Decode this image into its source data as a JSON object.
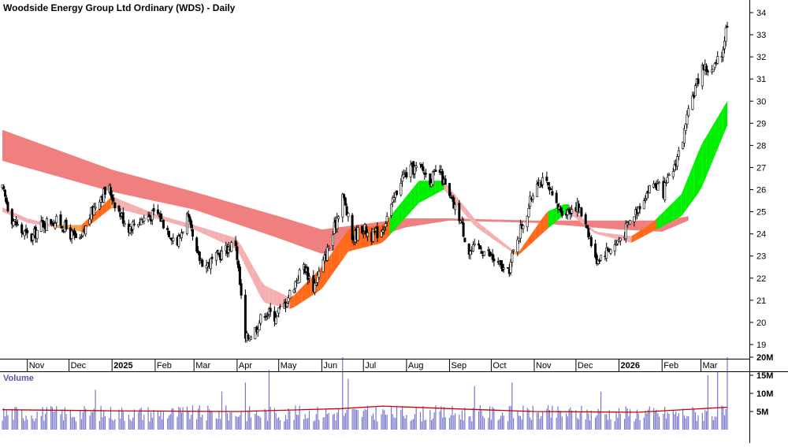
{
  "title": "Woodside Energy Group Ltd Ordinary (WDS) - Daily",
  "volume_label": "Volume",
  "colors": {
    "background": "#ffffff",
    "candle_up": "#ffffff",
    "candle_down": "#000000",
    "long_band": "#f08080",
    "short_ribbon_up": "#00ee00",
    "short_ribbon_down": "#ff6a1a",
    "short_ribbon_falling": "#f4b0b0",
    "short_ribbon_flat": "#f4a050",
    "volume_bar": "#7777cc",
    "volume_avg": "#cc0000",
    "axis": "#000000"
  },
  "chart_data": [
    {
      "type": "candlestick",
      "title": "Woodside Energy Group Ltd Ordinary (WDS) - Daily",
      "y_ticks": [
        19,
        20,
        21,
        22,
        23,
        24,
        25,
        26,
        27,
        28,
        29,
        30,
        31,
        32,
        33,
        34
      ],
      "ylim": [
        18.3,
        34.6
      ],
      "x_tick_labels": [
        "Nov",
        "Dec",
        "2025",
        "Feb",
        "Mar",
        "Apr",
        "May",
        "Jun",
        "Jul",
        "Aug",
        "Sep",
        "Oct",
        "Nov",
        "Dec",
        "2026",
        "Feb",
        "Mar"
      ],
      "grid": false,
      "close_path": [
        [
          "2024-10-14",
          26.0
        ],
        [
          "2024-10-21",
          24.7
        ],
        [
          "2024-10-28",
          24.1
        ],
        [
          "2024-11-04",
          23.8
        ],
        [
          "2024-11-11",
          24.4
        ],
        [
          "2024-11-18",
          24.6
        ],
        [
          "2024-11-25",
          24.5
        ],
        [
          "2024-12-02",
          24.0
        ],
        [
          "2024-12-09",
          23.6
        ],
        [
          "2024-12-16",
          24.8
        ],
        [
          "2024-12-23",
          25.7
        ],
        [
          "2024-12-30",
          26.0
        ],
        [
          "2025-01-06",
          25.0
        ],
        [
          "2025-01-13",
          24.3
        ],
        [
          "2025-01-20",
          24.6
        ],
        [
          "2025-01-27",
          24.8
        ],
        [
          "2025-02-03",
          24.9
        ],
        [
          "2025-02-10",
          24.2
        ],
        [
          "2025-02-17",
          23.6
        ],
        [
          "2025-02-24",
          24.8
        ],
        [
          "2025-03-03",
          23.0
        ],
        [
          "2025-03-10",
          22.6
        ],
        [
          "2025-03-17",
          22.9
        ],
        [
          "2025-03-24",
          23.3
        ],
        [
          "2025-03-31",
          23.6
        ],
        [
          "2025-04-07",
          19.2
        ],
        [
          "2025-04-14",
          19.7
        ],
        [
          "2025-04-21",
          20.5
        ],
        [
          "2025-04-28",
          20.3
        ],
        [
          "2025-05-05",
          20.8
        ],
        [
          "2025-05-12",
          21.7
        ],
        [
          "2025-05-19",
          22.6
        ],
        [
          "2025-05-26",
          21.6
        ],
        [
          "2025-06-02",
          22.7
        ],
        [
          "2025-06-09",
          24.0
        ],
        [
          "2025-06-16",
          25.8
        ],
        [
          "2025-06-23",
          23.8
        ],
        [
          "2025-06-30",
          24.3
        ],
        [
          "2025-07-07",
          23.9
        ],
        [
          "2025-07-14",
          24.2
        ],
        [
          "2025-07-21",
          25.2
        ],
        [
          "2025-07-28",
          26.5
        ],
        [
          "2025-08-04",
          26.9
        ],
        [
          "2025-08-11",
          27.0
        ],
        [
          "2025-08-18",
          26.5
        ],
        [
          "2025-08-25",
          26.8
        ],
        [
          "2025-09-01",
          25.6
        ],
        [
          "2025-09-08",
          24.8
        ],
        [
          "2025-09-15",
          23.2
        ],
        [
          "2025-09-22",
          23.4
        ],
        [
          "2025-09-29",
          23.1
        ],
        [
          "2025-10-06",
          22.6
        ],
        [
          "2025-10-13",
          22.2
        ],
        [
          "2025-10-20",
          23.9
        ],
        [
          "2025-10-27",
          25.0
        ],
        [
          "2025-11-03",
          26.5
        ],
        [
          "2025-11-10",
          26.2
        ],
        [
          "2025-11-17",
          25.2
        ],
        [
          "2025-11-24",
          25.0
        ],
        [
          "2025-12-01",
          25.3
        ],
        [
          "2025-12-08",
          24.6
        ],
        [
          "2025-12-15",
          22.8
        ],
        [
          "2025-12-22",
          23.2
        ],
        [
          "2025-12-29",
          23.5
        ],
        [
          "2026-01-05",
          24.1
        ],
        [
          "2026-01-12",
          24.9
        ],
        [
          "2026-01-19",
          25.7
        ],
        [
          "2026-01-26",
          26.3
        ],
        [
          "2026-02-02",
          25.9
        ],
        [
          "2026-02-09",
          26.9
        ],
        [
          "2026-02-16",
          28.3
        ],
        [
          "2026-02-23",
          30.2
        ],
        [
          "2026-03-02",
          31.6
        ],
        [
          "2026-03-09",
          31.3
        ],
        [
          "2026-03-16",
          32.1
        ],
        [
          "2026-03-20",
          33.6
        ]
      ],
      "long_term_band_upper": [
        [
          "2024-10-14",
          28.7
        ],
        [
          "2025-01-01",
          26.9
        ],
        [
          "2025-03-01",
          25.9
        ],
        [
          "2025-05-01",
          24.8
        ],
        [
          "2025-06-01",
          24.2
        ],
        [
          "2025-08-01",
          24.7
        ],
        [
          "2025-09-01",
          24.7
        ],
        [
          "2025-11-01",
          24.6
        ],
        [
          "2026-01-01",
          24.6
        ],
        [
          "2026-02-01",
          24.6
        ],
        [
          "2026-02-20",
          24.8
        ]
      ],
      "long_term_band_lower": [
        [
          "2024-10-14",
          27.3
        ],
        [
          "2025-01-01",
          25.9
        ],
        [
          "2025-03-01",
          25.1
        ],
        [
          "2025-05-01",
          23.8
        ],
        [
          "2025-06-01",
          23.1
        ],
        [
          "2025-08-01",
          24.3
        ],
        [
          "2025-09-01",
          24.6
        ],
        [
          "2025-11-01",
          24.5
        ],
        [
          "2026-01-01",
          24.2
        ],
        [
          "2026-02-01",
          24.1
        ],
        [
          "2026-02-20",
          24.6
        ]
      ],
      "short_term_ribbon_upper": [
        [
          "2024-10-14",
          25.2
        ],
        [
          "2024-11-01",
          24.7
        ],
        [
          "2024-11-20",
          24.4
        ],
        [
          "2024-12-10",
          24.4
        ],
        [
          "2025-01-01",
          25.7
        ],
        [
          "2025-02-01",
          24.9
        ],
        [
          "2025-03-01",
          24.4
        ],
        [
          "2025-04-01",
          23.8
        ],
        [
          "2025-04-20",
          21.7
        ],
        [
          "2025-05-10",
          21.1
        ],
        [
          "2025-06-01",
          22.5
        ],
        [
          "2025-06-20",
          24.2
        ],
        [
          "2025-07-15",
          24.4
        ],
        [
          "2025-08-10",
          26.4
        ],
        [
          "2025-08-28",
          26.4
        ],
        [
          "2025-09-20",
          24.6
        ],
        [
          "2025-10-20",
          23.1
        ],
        [
          "2025-11-10",
          25.0
        ],
        [
          "2025-11-25",
          25.4
        ],
        [
          "2025-12-15",
          24.1
        ],
        [
          "2026-01-10",
          23.9
        ],
        [
          "2026-01-25",
          24.5
        ],
        [
          "2026-02-15",
          25.8
        ],
        [
          "2026-03-01",
          28.0
        ],
        [
          "2026-03-20",
          30.0
        ]
      ],
      "short_term_ribbon_lower": [
        [
          "2024-10-14",
          25.0
        ],
        [
          "2024-11-01",
          24.5
        ],
        [
          "2024-11-20",
          24.3
        ],
        [
          "2024-12-10",
          24.1
        ],
        [
          "2025-01-01",
          25.2
        ],
        [
          "2025-02-01",
          24.7
        ],
        [
          "2025-03-01",
          24.2
        ],
        [
          "2025-04-01",
          23.3
        ],
        [
          "2025-04-20",
          20.9
        ],
        [
          "2025-05-10",
          20.6
        ],
        [
          "2025-06-01",
          21.5
        ],
        [
          "2025-06-20",
          23.2
        ],
        [
          "2025-07-15",
          23.6
        ],
        [
          "2025-08-10",
          25.4
        ],
        [
          "2025-08-28",
          26.0
        ],
        [
          "2025-09-20",
          24.3
        ],
        [
          "2025-10-20",
          23.0
        ],
        [
          "2025-11-10",
          24.2
        ],
        [
          "2025-11-25",
          25.0
        ],
        [
          "2025-12-15",
          24.0
        ],
        [
          "2026-01-10",
          23.6
        ],
        [
          "2026-01-25",
          24.1
        ],
        [
          "2026-02-15",
          24.8
        ],
        [
          "2026-03-01",
          26.0
        ],
        [
          "2026-03-20",
          28.9
        ]
      ]
    },
    {
      "type": "bar",
      "title": "Volume",
      "y_tick_labels": [
        "5M",
        "10M",
        "15M",
        "20M"
      ],
      "y_ticks": [
        5000000,
        10000000,
        15000000,
        20000000
      ],
      "ylim": [
        0,
        21500000
      ],
      "typical_daily_volume": 5000000,
      "spikes": [
        [
          "2024-12-20",
          11000000
        ],
        [
          "2025-03-21",
          10500000
        ],
        [
          "2025-04-07",
          13000000
        ],
        [
          "2025-04-24",
          16500000
        ],
        [
          "2025-06-16",
          20000000
        ],
        [
          "2025-06-20",
          14000000
        ],
        [
          "2025-09-19",
          12000000
        ],
        [
          "2025-10-16",
          13000000
        ],
        [
          "2025-12-19",
          10500000
        ],
        [
          "2026-03-06",
          15000000
        ],
        [
          "2026-03-13",
          16000000
        ],
        [
          "2026-03-20",
          20000000
        ]
      ],
      "average_line": [
        [
          "2024-10-14",
          5500000
        ],
        [
          "2025-01-01",
          5200000
        ],
        [
          "2025-04-01",
          5000000
        ],
        [
          "2025-06-15",
          5800000
        ],
        [
          "2025-07-15",
          6500000
        ],
        [
          "2025-09-01",
          5800000
        ],
        [
          "2025-11-01",
          5000000
        ],
        [
          "2026-01-15",
          4800000
        ],
        [
          "2026-03-20",
          6200000
        ]
      ]
    }
  ]
}
